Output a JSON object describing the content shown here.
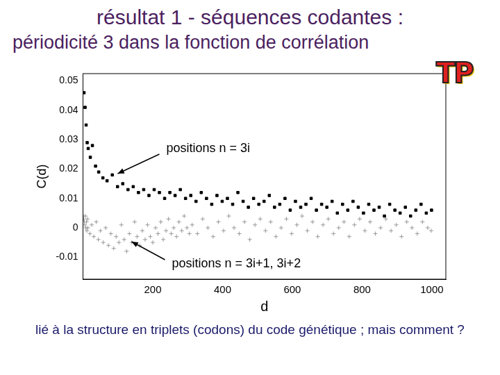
{
  "chart_data": {
    "type": "scatter",
    "title": "résultat 1 - séquences codantes :",
    "subtitle": "périodicité 3 dans la fonction de corrélation",
    "logo": "TP",
    "caption": "lié à la structure en triplets (codons) du code génétique ; mais comment ?",
    "x_label": "d",
    "y_label": "C(d)",
    "xlim": [
      0,
      1040
    ],
    "xticks": [
      200,
      400,
      600,
      800,
      1000
    ],
    "ylim": [
      -0.0175,
      0.0525
    ],
    "yticks": [
      -0.01,
      0,
      0.01,
      0.02,
      0.03,
      0.04,
      0.05
    ],
    "grid": false,
    "series": [
      {
        "name": "positions n = 3i",
        "color": "#000000",
        "marker": "square",
        "x": [
          3,
          6,
          9,
          12,
          15,
          21,
          27,
          36,
          45,
          57,
          69,
          84,
          99,
          114,
          129,
          144,
          159,
          174,
          189,
          204,
          219,
          234,
          249,
          264,
          279,
          294,
          309,
          324,
          339,
          354,
          369,
          384,
          399,
          414,
          429,
          444,
          459,
          474,
          489,
          504,
          519,
          534,
          549,
          564,
          579,
          594,
          609,
          624,
          639,
          654,
          669,
          684,
          699,
          714,
          729,
          744,
          759,
          774,
          789,
          804,
          819,
          834,
          849,
          864,
          879,
          894,
          909,
          924,
          939,
          954,
          969,
          984,
          999
        ],
        "values": [
          0.046,
          0.041,
          0.035,
          0.029,
          0.027,
          0.024,
          0.028,
          0.021,
          0.019,
          0.017,
          0.016,
          0.018,
          0.014,
          0.015,
          0.013,
          0.014,
          0.012,
          0.013,
          0.011,
          0.013,
          0.012,
          0.01,
          0.012,
          0.011,
          0.013,
          0.01,
          0.011,
          0.009,
          0.012,
          0.01,
          0.008,
          0.011,
          0.009,
          0.01,
          0.008,
          0.012,
          0.009,
          0.007,
          0.01,
          0.008,
          0.009,
          0.011,
          0.007,
          0.008,
          0.01,
          0.006,
          0.009,
          0.007,
          0.008,
          0.01,
          0.006,
          0.008,
          0.007,
          0.009,
          0.005,
          0.008,
          0.006,
          0.009,
          0.007,
          0.005,
          0.008,
          0.006,
          0.007,
          0.004,
          0.008,
          0.006,
          0.005,
          0.007,
          0.004,
          0.006,
          0.008,
          0.005,
          0.006
        ]
      },
      {
        "name": "positions n = 3i+1, 3i+2",
        "color": "#999999",
        "marker": "cross",
        "x": [
          1,
          2,
          4,
          5,
          7,
          8,
          10,
          11,
          13,
          14,
          20,
          25,
          31,
          38,
          44,
          50,
          58,
          65,
          73,
          80,
          88,
          95,
          103,
          110,
          118,
          125,
          133,
          140,
          148,
          155,
          163,
          170,
          178,
          185,
          193,
          200,
          208,
          215,
          223,
          230,
          238,
          245,
          253,
          260,
          268,
          275,
          283,
          290,
          298,
          305,
          313,
          328,
          343,
          358,
          373,
          388,
          403,
          418,
          433,
          448,
          463,
          478,
          493,
          508,
          523,
          538,
          553,
          568,
          583,
          598,
          613,
          628,
          643,
          658,
          673,
          688,
          703,
          718,
          733,
          748,
          763,
          778,
          793,
          808,
          823,
          838,
          853,
          868,
          883,
          898,
          913,
          928,
          943,
          958,
          973,
          988,
          998
        ],
        "values": [
          0.004,
          0.003,
          0.002,
          0.001,
          0.004,
          0.0,
          0.002,
          -0.001,
          0.003,
          0.0,
          -0.002,
          0.001,
          -0.003,
          0.002,
          -0.004,
          -0.001,
          -0.005,
          0.0,
          -0.006,
          -0.002,
          -0.007,
          -0.003,
          -0.005,
          0.001,
          -0.004,
          -0.008,
          -0.002,
          -0.005,
          0.002,
          -0.003,
          -0.006,
          -0.001,
          -0.004,
          0.001,
          -0.003,
          -0.005,
          0.0,
          -0.002,
          0.002,
          -0.004,
          -0.001,
          0.003,
          -0.002,
          0.0,
          -0.003,
          0.002,
          -0.001,
          0.004,
          0.0,
          -0.002,
          0.001,
          -0.002,
          0.003,
          0.0,
          -0.003,
          0.002,
          -0.001,
          0.004,
          0.0,
          -0.002,
          0.002,
          -0.004,
          0.001,
          0.003,
          -0.001,
          0.002,
          -0.003,
          0.0,
          0.003,
          -0.002,
          0.001,
          0.004,
          -0.001,
          0.002,
          -0.003,
          0.001,
          0.003,
          -0.002,
          0.0,
          0.002,
          -0.003,
          0.001,
          0.003,
          -0.001,
          0.002,
          -0.002,
          0.0,
          0.003,
          -0.001,
          0.001,
          -0.003,
          0.002,
          0.0,
          -0.002,
          0.002,
          0.0,
          -0.001
        ]
      }
    ]
  }
}
